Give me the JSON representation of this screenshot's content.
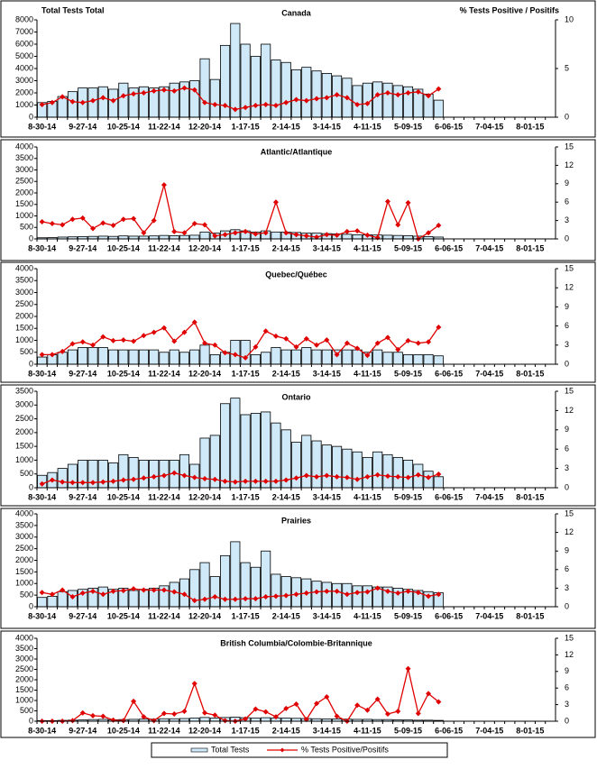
{
  "chart_data": [
    {
      "type": "combo",
      "title": "Canada",
      "ylabel": "Total Tests Total",
      "y2label": "% Tests Positive / Positifs",
      "legend": "bottom",
      "grid": false,
      "categories": [
        "8-30-14",
        null,
        null,
        null,
        "9-27-14",
        null,
        null,
        null,
        "10-25-14",
        null,
        null,
        null,
        "11-22-14",
        null,
        null,
        null,
        "12-20-14",
        null,
        null,
        null,
        "1-17-15",
        null,
        null,
        null,
        "2-14-15",
        null,
        null,
        null,
        "3-14-15",
        null,
        null,
        null,
        "4-11-15",
        null,
        null,
        null,
        "5-09-15",
        null,
        null,
        null,
        "6-06-15",
        null,
        null,
        null,
        "7-04-15",
        null,
        null,
        null,
        "8-01-15",
        null,
        null
      ],
      "ylim": [
        0,
        8000
      ],
      "yticks": [
        0,
        1000,
        2000,
        3000,
        4000,
        5000,
        6000,
        7000,
        8000
      ],
      "y2lim": [
        0,
        10
      ],
      "y2ticks": [
        0,
        5,
        10
      ],
      "series": [
        {
          "name": "Total Tests",
          "type": "bar",
          "color": "#cfe9f8",
          "values": [
            1200,
            1300,
            1700,
            2100,
            2400,
            2400,
            2500,
            2300,
            2800,
            2400,
            2500,
            2400,
            2500,
            2800,
            2900,
            3000,
            4800,
            3100,
            5900,
            7700,
            6000,
            5000,
            6000,
            4700,
            4500,
            3900,
            4100,
            3800,
            3600,
            3400,
            3200,
            2600,
            2800,
            2900,
            2800,
            2600,
            2500,
            2300,
            1900,
            1400,
            null,
            null,
            null,
            null,
            null,
            null,
            null,
            null,
            null,
            null,
            null
          ]
        },
        {
          "name": "% Tests Positive/Positifs",
          "type": "line",
          "axis": "y2",
          "color": "#e00000",
          "values": [
            1.3,
            1.5,
            2.1,
            1.6,
            1.5,
            1.7,
            2.0,
            1.7,
            2.2,
            2.4,
            2.5,
            2.7,
            2.8,
            2.7,
            3.0,
            2.8,
            1.5,
            1.3,
            1.2,
            0.8,
            1.0,
            1.2,
            1.3,
            1.2,
            1.5,
            1.8,
            1.7,
            1.9,
            2.0,
            2.3,
            2.0,
            1.3,
            1.4,
            2.3,
            2.5,
            2.3,
            2.5,
            2.6,
            2.2,
            2.9,
            null,
            null,
            null,
            null,
            null,
            null,
            null,
            null,
            null,
            null,
            null
          ]
        }
      ]
    },
    {
      "type": "combo",
      "title": "Atlantic/Atlantique",
      "grid": false,
      "categories": [
        "8-30-14",
        null,
        null,
        null,
        "9-27-14",
        null,
        null,
        null,
        "10-25-14",
        null,
        null,
        null,
        "11-22-14",
        null,
        null,
        null,
        "12-20-14",
        null,
        null,
        null,
        "1-17-15",
        null,
        null,
        null,
        "2-14-15",
        null,
        null,
        null,
        "3-14-15",
        null,
        null,
        null,
        "4-11-15",
        null,
        null,
        null,
        "5-09-15",
        null,
        null,
        null,
        "6-06-15",
        null,
        null,
        null,
        "7-04-15",
        null,
        null,
        null,
        "8-01-15",
        null,
        null
      ],
      "ylim": [
        0,
        4000
      ],
      "yticks": [
        0,
        500,
        1000,
        1500,
        2000,
        2500,
        3000,
        3500,
        4000
      ],
      "y2lim": [
        0,
        15
      ],
      "y2ticks": [
        0,
        3,
        6,
        9,
        12,
        15
      ],
      "series": [
        {
          "type": "bar",
          "color": "#cfe9f8",
          "values": [
            50,
            60,
            80,
            90,
            100,
            110,
            120,
            110,
            130,
            120,
            120,
            130,
            150,
            140,
            150,
            160,
            300,
            250,
            350,
            400,
            350,
            300,
            350,
            300,
            300,
            280,
            250,
            250,
            230,
            220,
            200,
            180,
            180,
            170,
            160,
            150,
            140,
            120,
            100,
            80,
            null,
            null,
            null,
            null,
            null,
            null,
            null,
            null,
            null,
            null,
            null
          ]
        },
        {
          "type": "line",
          "axis": "y2",
          "color": "#e00000",
          "values": [
            2.8,
            2.5,
            2.3,
            3.2,
            3.4,
            1.7,
            2.6,
            2.2,
            3.2,
            3.3,
            1.0,
            3.0,
            8.8,
            1.2,
            1.0,
            2.5,
            2.3,
            0.5,
            0.7,
            1.0,
            1.2,
            0.8,
            1.0,
            6.0,
            1.0,
            0.7,
            0.5,
            0.3,
            0.7,
            0.6,
            1.2,
            1.3,
            0.6,
            0.2,
            6.1,
            2.3,
            5.9,
            0,
            1.0,
            2.2,
            null,
            null,
            null,
            null,
            null,
            null,
            null,
            null,
            null,
            null,
            null
          ]
        }
      ]
    },
    {
      "type": "combo",
      "title": "Quebec/Québec",
      "grid": false,
      "categories": [
        "8-30-14",
        null,
        null,
        null,
        "9-27-14",
        null,
        null,
        null,
        "10-25-14",
        null,
        null,
        null,
        "11-22-14",
        null,
        null,
        null,
        "12-20-14",
        null,
        null,
        null,
        "1-17-15",
        null,
        null,
        null,
        "2-14-15",
        null,
        null,
        null,
        "3-14-15",
        null,
        null,
        null,
        "4-11-15",
        null,
        null,
        null,
        "5-09-15",
        null,
        null,
        null,
        "6-06-15",
        null,
        null,
        null,
        "7-04-15",
        null,
        null,
        null,
        "8-01-15",
        null,
        null
      ],
      "ylim": [
        0,
        4000
      ],
      "yticks": [
        0,
        500,
        1000,
        1500,
        2000,
        2500,
        3000,
        3500,
        4000
      ],
      "y2lim": [
        0,
        15
      ],
      "y2ticks": [
        0,
        3,
        6,
        9,
        12,
        15
      ],
      "series": [
        {
          "type": "bar",
          "color": "#cfe9f8",
          "values": [
            300,
            400,
            500,
            600,
            700,
            700,
            700,
            600,
            600,
            600,
            600,
            600,
            500,
            600,
            500,
            600,
            800,
            400,
            500,
            1000,
            1000,
            400,
            500,
            700,
            600,
            600,
            700,
            600,
            600,
            600,
            600,
            600,
            500,
            600,
            500,
            500,
            400,
            400,
            400,
            350,
            null,
            null,
            null,
            null,
            null,
            null,
            null,
            null,
            null,
            null,
            null
          ]
        },
        {
          "type": "line",
          "axis": "y2",
          "color": "#e00000",
          "values": [
            1.5,
            1.5,
            2.0,
            3.2,
            3.5,
            3.0,
            4.3,
            3.7,
            3.8,
            3.6,
            4.5,
            5.0,
            5.7,
            3.6,
            5.0,
            6.6,
            3.3,
            3.0,
            1.8,
            1.5,
            1.0,
            2.7,
            5.2,
            4.4,
            4.0,
            2.7,
            4.0,
            3.0,
            3.8,
            1.5,
            3.3,
            2.5,
            1.4,
            3.3,
            4.2,
            2.3,
            3.7,
            3.3,
            3.5,
            5.8,
            null,
            null,
            null,
            null,
            null,
            null,
            null,
            null,
            null,
            null,
            null
          ]
        }
      ]
    },
    {
      "type": "combo",
      "title": "Ontario",
      "grid": false,
      "categories": [
        "8-30-14",
        null,
        null,
        null,
        "9-27-14",
        null,
        null,
        null,
        "10-25-14",
        null,
        null,
        null,
        "11-22-14",
        null,
        null,
        null,
        "12-20-14",
        null,
        null,
        null,
        "1-17-15",
        null,
        null,
        null,
        "2-14-15",
        null,
        null,
        null,
        "3-14-15",
        null,
        null,
        null,
        "4-11-15",
        null,
        null,
        null,
        "5-09-15",
        null,
        null,
        null,
        "6-06-15",
        null,
        null,
        null,
        "7-04-15",
        null,
        null,
        null,
        "8-01-15",
        null,
        null
      ],
      "ylim": [
        0,
        3500
      ],
      "yticks": [
        0,
        500,
        1000,
        1500,
        2000,
        2500,
        3000,
        3500
      ],
      "y2lim": [
        0,
        15
      ],
      "y2ticks": [
        0,
        3,
        6,
        9,
        12,
        15
      ],
      "series": [
        {
          "type": "bar",
          "color": "#cfe9f8",
          "values": [
            450,
            550,
            700,
            850,
            1000,
            1000,
            1000,
            900,
            1200,
            1100,
            1000,
            1000,
            1000,
            1000,
            1200,
            850,
            1800,
            1900,
            3050,
            3250,
            2650,
            2700,
            2750,
            2350,
            2100,
            1650,
            1900,
            1700,
            1550,
            1500,
            1400,
            1300,
            1100,
            1300,
            1200,
            1100,
            1000,
            850,
            600,
            400,
            null,
            null,
            null,
            null,
            null,
            null,
            null,
            null,
            null,
            null,
            null
          ]
        },
        {
          "type": "line",
          "axis": "y2",
          "color": "#e00000",
          "values": [
            0.6,
            1.2,
            0.9,
            0.8,
            0.8,
            0.8,
            0.9,
            1.0,
            1.2,
            1.3,
            1.5,
            1.7,
            1.9,
            2.3,
            1.9,
            1.6,
            1.4,
            1.3,
            1.0,
            0.9,
            1.0,
            1.0,
            1.0,
            1.0,
            1.2,
            1.5,
            1.9,
            1.7,
            1.9,
            1.7,
            1.6,
            1.3,
            1.7,
            2.0,
            1.8,
            1.7,
            1.6,
            2.0,
            1.6,
            2.1,
            null,
            null,
            null,
            null,
            null,
            null,
            null,
            null,
            null,
            null,
            null
          ]
        }
      ]
    },
    {
      "type": "combo",
      "title": "Prairies",
      "grid": false,
      "categories": [
        "8-30-14",
        null,
        null,
        null,
        "9-27-14",
        null,
        null,
        null,
        "10-25-14",
        null,
        null,
        null,
        "11-22-14",
        null,
        null,
        null,
        "12-20-14",
        null,
        null,
        null,
        "1-17-15",
        null,
        null,
        null,
        "2-14-15",
        null,
        null,
        null,
        "3-14-15",
        null,
        null,
        null,
        "4-11-15",
        null,
        null,
        null,
        "5-09-15",
        null,
        null,
        null,
        "6-06-15",
        null,
        null,
        null,
        "7-04-15",
        null,
        null,
        null,
        "8-01-15",
        null,
        null
      ],
      "ylim": [
        0,
        4000
      ],
      "yticks": [
        0,
        500,
        1000,
        1500,
        2000,
        2500,
        3000,
        3500,
        4000
      ],
      "y2lim": [
        0,
        15
      ],
      "y2ticks": [
        0,
        3,
        6,
        9,
        12,
        15
      ],
      "series": [
        {
          "type": "bar",
          "color": "#cfe9f8",
          "values": [
            400,
            450,
            650,
            700,
            750,
            800,
            850,
            750,
            800,
            700,
            750,
            800,
            900,
            1050,
            1200,
            1600,
            1900,
            1300,
            2200,
            2800,
            1900,
            1700,
            2400,
            1400,
            1300,
            1250,
            1200,
            1100,
            1050,
            1000,
            1000,
            900,
            900,
            850,
            850,
            800,
            750,
            700,
            650,
            600,
            null,
            null,
            null,
            null,
            null,
            null,
            null,
            null,
            null,
            null,
            null
          ]
        },
        {
          "type": "line",
          "axis": "y2",
          "color": "#e00000",
          "values": [
            2.3,
            2.0,
            2.7,
            1.6,
            2.2,
            2.5,
            2.0,
            2.5,
            2.6,
            2.9,
            2.7,
            2.7,
            2.7,
            2.4,
            2.0,
            1.0,
            1.2,
            1.6,
            1.2,
            1.2,
            1.3,
            1.3,
            1.6,
            1.7,
            1.8,
            2.0,
            2.2,
            2.4,
            2.5,
            2.5,
            2.0,
            2.3,
            2.4,
            3.0,
            2.5,
            2.2,
            2.5,
            2.3,
            1.7,
            2.0,
            null,
            null,
            null,
            null,
            null,
            null,
            null,
            null,
            null,
            null,
            null
          ]
        }
      ]
    },
    {
      "type": "combo",
      "title": "British Columbia/Colombie-Britannique",
      "grid": false,
      "categories": [
        "8-30-14",
        null,
        null,
        null,
        "9-27-14",
        null,
        null,
        null,
        "10-25-14",
        null,
        null,
        null,
        "11-22-14",
        null,
        null,
        null,
        "12-20-14",
        null,
        null,
        null,
        "1-17-15",
        null,
        null,
        null,
        "2-14-15",
        null,
        null,
        null,
        "3-14-15",
        null,
        null,
        null,
        "4-11-15",
        null,
        null,
        null,
        "5-09-15",
        null,
        null,
        null,
        "6-06-15",
        null,
        null,
        null,
        "7-04-15",
        null,
        null,
        null,
        "8-01-15",
        null,
        null
      ],
      "ylim": [
        0,
        4000
      ],
      "yticks": [
        0,
        500,
        1000,
        1500,
        2000,
        2500,
        3000,
        3500,
        4000
      ],
      "y2lim": [
        0,
        15
      ],
      "y2ticks": [
        0,
        3,
        6,
        9,
        12,
        15
      ],
      "series": [
        {
          "type": "bar",
          "color": "#cfe9f8",
          "values": [
            30,
            30,
            40,
            50,
            60,
            80,
            90,
            70,
            80,
            90,
            100,
            100,
            120,
            120,
            130,
            150,
            180,
            150,
            180,
            200,
            170,
            150,
            170,
            160,
            150,
            140,
            130,
            120,
            110,
            110,
            100,
            90,
            90,
            80,
            80,
            70,
            60,
            50,
            50,
            40,
            null,
            null,
            null,
            null,
            null,
            null,
            null,
            null,
            null,
            null,
            null
          ]
        },
        {
          "type": "line",
          "axis": "y2",
          "color": "#e00000",
          "values": [
            0,
            0,
            0,
            0.1,
            1.5,
            1.0,
            0.9,
            0.2,
            0.1,
            3.6,
            0.8,
            0.1,
            1.4,
            1.3,
            1.8,
            6.8,
            1.5,
            1.1,
            0.1,
            0,
            0.4,
            2.2,
            1.7,
            0.8,
            2.3,
            3.1,
            0.3,
            3.2,
            4.4,
            0.9,
            0,
            2.9,
            2.0,
            4.0,
            1.3,
            1.8,
            9.5,
            1.4,
            5.0,
            3.5,
            null,
            null,
            null,
            null,
            null,
            null,
            null,
            null,
            null,
            null,
            null
          ]
        }
      ]
    }
  ]
}
